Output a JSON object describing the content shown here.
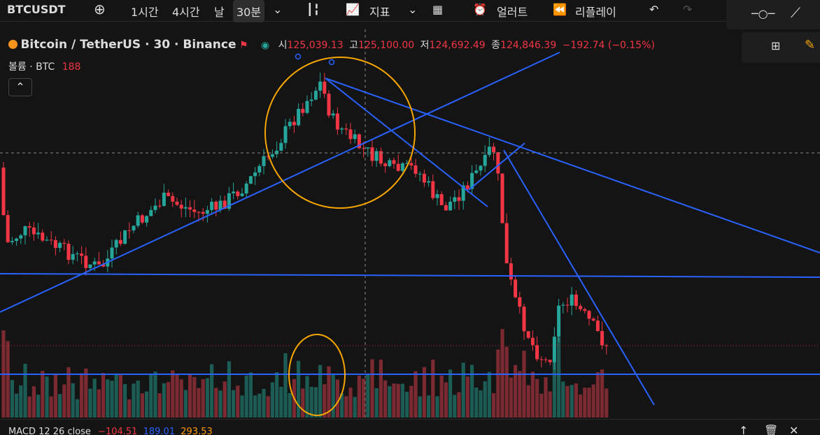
{
  "toolbar": {
    "symbol": "BTCUSDT",
    "intervals": [
      "1시간",
      "4시간",
      "날",
      "30분"
    ],
    "indicators": "지표",
    "alert": "얼러트",
    "replay": "리플레이"
  },
  "legend": {
    "title": "Bitcoin / TetherUS · 30 · Binance",
    "open_label": "시",
    "open": "125,039.13",
    "high_label": "고",
    "high": "125,100.00",
    "low_label": "저",
    "low": "124,692.49",
    "close_label": "종",
    "close": "124,846.39",
    "change": "−192.74 (−0.15%)"
  },
  "volume": {
    "label": "볼륨 · BTC",
    "value": "188"
  },
  "macd": {
    "label": "MACD 12 26 close",
    "values": [
      "−104.51",
      "189.01",
      "293.53"
    ]
  }
}
